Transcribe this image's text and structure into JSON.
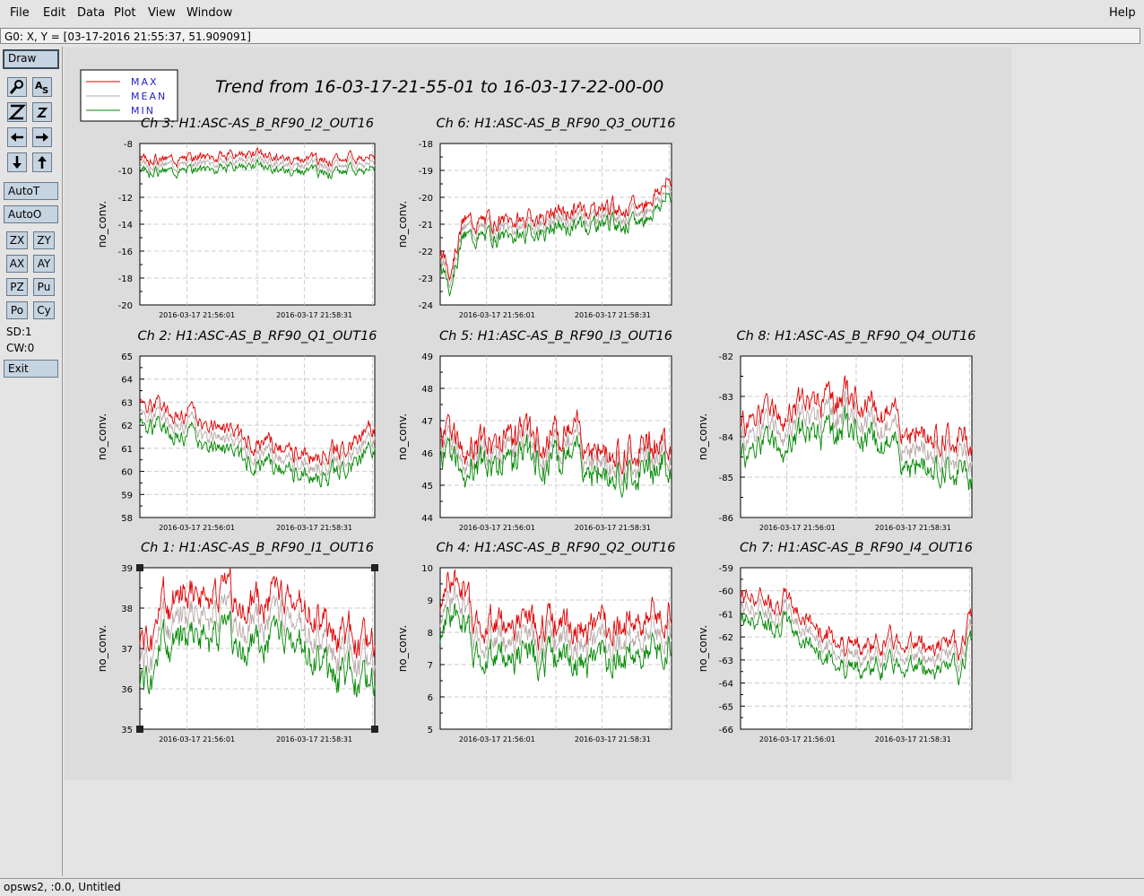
{
  "menu": {
    "items": [
      "File",
      "Edit",
      "Data",
      "Plot",
      "View",
      "Window"
    ],
    "help": "Help"
  },
  "coord_readout": "G0: X, Y = [03-17-2016 21:55:37, 51.909091]",
  "toolpanel": {
    "draw": "Draw",
    "auto_t": "AutoT",
    "auto_o": "AutoO",
    "zoom_buttons": [
      "ZX",
      "ZY",
      "AX",
      "AY",
      "PZ",
      "Pu",
      "Po",
      "Cy"
    ],
    "sd": "SD:1",
    "cw": "CW:0",
    "exit": "Exit",
    "icon_buttons": [
      "magnify-icon",
      "text-tool-icon",
      "zoom-z-large-icon",
      "zoom-z-small-icon",
      "arrow-left-icon",
      "arrow-right-icon",
      "arrow-down-icon",
      "arrow-up-icon"
    ]
  },
  "status": "opsws2, :0.0, Untitled",
  "colors": {
    "max": "#e00000",
    "mean": "#b8a8a8",
    "min": "#008800",
    "button": "#c6d3e0"
  },
  "chart_data": {
    "type": "line",
    "title": "Trend from 16-03-17-21-55-01 to 16-03-17-22-00-00",
    "legend": [
      "MAX",
      "MEAN",
      "MIN"
    ],
    "legend_position": "top-left",
    "x_tick_labels": [
      "2016-03-17 21:56:01",
      "2016-03-17 21:58:31"
    ],
    "ylabel": "no_conv.",
    "grid": true,
    "panels": [
      {
        "title": "Ch 3: H1:ASC-AS_B_RF90_I2_OUT16",
        "ylim": [
          -20,
          -8
        ],
        "yticks": [
          "-8",
          "-10",
          "-12",
          "-14",
          "-16",
          "-18",
          "-20"
        ],
        "trend": {
          "points": [
            0,
            -9.6,
            0.2,
            -9.5,
            0.35,
            -9.4,
            0.5,
            -9.2,
            0.6,
            -9.5,
            0.8,
            -9.7,
            1,
            -9.3
          ],
          "spread": 0.4,
          "noise": 0.25,
          "seed": 3
        }
      },
      {
        "title": "Ch 6: H1:ASC-AS_B_RF90_Q3_OUT16",
        "ylim": [
          -24,
          -18
        ],
        "yticks": [
          "-18",
          "-19",
          "-20",
          "-21",
          "-22",
          "-23",
          "-24"
        ],
        "trend": {
          "points": [
            0,
            -22.3,
            0.04,
            -22.9,
            0.1,
            -21.2,
            0.3,
            -21.2,
            0.5,
            -20.9,
            0.7,
            -20.6,
            0.85,
            -20.7,
            1,
            -19.6
          ],
          "spread": 0.25,
          "noise": 0.22,
          "seed": 6
        }
      },
      {
        "title": "Ch 2: H1:ASC-AS_B_RF90_Q1_OUT16",
        "ylim": [
          58,
          65
        ],
        "yticks": [
          "65",
          "64",
          "63",
          "62",
          "61",
          "60",
          "59",
          "58"
        ],
        "trend": {
          "points": [
            0,
            62.6,
            0.2,
            62,
            0.35,
            61.1,
            0.55,
            60.7,
            0.7,
            60.2,
            0.8,
            60.3,
            1,
            61.3
          ],
          "spread": 0.4,
          "noise": 0.28,
          "seed": 2
        }
      },
      {
        "title": "Ch 5: H1:ASC-AS_B_RF90_I3_OUT16",
        "ylim": [
          44,
          49
        ],
        "yticks": [
          "49",
          "48",
          "47",
          "46",
          "45",
          "44"
        ],
        "trend": {
          "points": [
            0,
            46.2,
            0.2,
            45.8,
            0.4,
            46,
            0.6,
            46.3,
            0.7,
            45.7,
            0.85,
            45.8,
            1,
            46
          ],
          "spread": 0.3,
          "noise": 0.35,
          "seed": 5
        }
      },
      {
        "title": "Ch 8: H1:ASC-AS_B_RF90_Q4_OUT16",
        "ylim": [
          -86,
          -82
        ],
        "yticks": [
          "-82",
          "-83",
          "-84",
          "-85",
          "-86"
        ],
        "trend": {
          "points": [
            0,
            -84,
            0.2,
            -83.8,
            0.45,
            -83.4,
            0.6,
            -83.7,
            0.75,
            -84.3,
            1,
            -84.5
          ],
          "spread": 0.35,
          "noise": 0.25,
          "seed": 8
        }
      },
      {
        "title": "Ch 1: H1:ASC-AS_B_RF90_I1_OUT16",
        "ylim": [
          35,
          39
        ],
        "yticks": [
          "39",
          "38",
          "37",
          "36",
          "35"
        ],
        "selected": true,
        "trend": {
          "points": [
            0,
            36.6,
            0.05,
            36.6,
            0.1,
            37.6,
            0.3,
            37.8,
            0.45,
            37.6,
            0.65,
            37.6,
            0.8,
            37,
            1,
            36.5
          ],
          "spread": 0.45,
          "noise": 0.3,
          "seed": 1
        }
      },
      {
        "title": "Ch 4: H1:ASC-AS_B_RF90_Q2_OUT16",
        "ylim": [
          5,
          10
        ],
        "yticks": [
          "10",
          "9",
          "8",
          "7",
          "6",
          "5"
        ],
        "trend": {
          "points": [
            0,
            8.5,
            0.08,
            9.4,
            0.15,
            7.8,
            0.35,
            7.7,
            0.6,
            7.6,
            0.8,
            7.8,
            1,
            8.3
          ],
          "spread": 0.45,
          "noise": 0.35,
          "seed": 4
        }
      },
      {
        "title": "Ch 7: H1:ASC-AS_B_RF90_I4_OUT16",
        "ylim": [
          -66,
          -59
        ],
        "yticks": [
          "-59",
          "-60",
          "-61",
          "-62",
          "-63",
          "-64",
          "-65",
          "-66"
        ],
        "trend": {
          "points": [
            0,
            -60.7,
            0.2,
            -60.9,
            0.35,
            -62.3,
            0.5,
            -62.9,
            0.7,
            -62.6,
            0.85,
            -62.9,
            0.95,
            -62.9,
            1,
            -61.6
          ],
          "spread": 0.45,
          "noise": 0.3,
          "seed": 7
        }
      }
    ]
  }
}
